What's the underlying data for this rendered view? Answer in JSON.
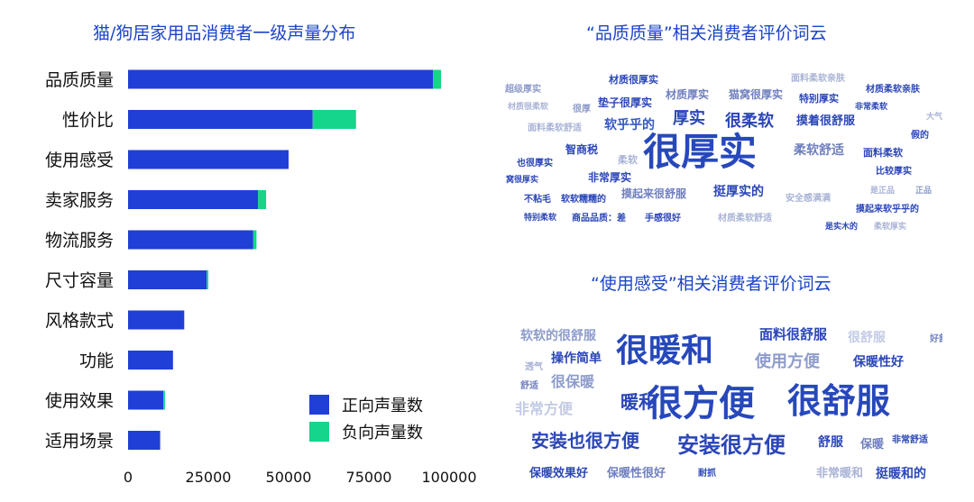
{
  "left_title": "猫/狗居家用品消费者一级声量分布",
  "legend": {
    "positive": {
      "label": "正向声量数",
      "color": "#1f3fd6"
    },
    "negative": {
      "label": "负向声量数",
      "color": "#14d58a"
    }
  },
  "chart_data": {
    "type": "bar",
    "orientation": "horizontal",
    "stacked": true,
    "categories": [
      "品质质量",
      "性价比",
      "使用感受",
      "卖家服务",
      "物流服务",
      "尺寸容量",
      "风格款式",
      "功能",
      "使用效果",
      "适用场景"
    ],
    "series": [
      {
        "name": "正向声量数",
        "color": "#1f3fd6",
        "values": [
          95000,
          57500,
          50000,
          40500,
          39000,
          24500,
          17500,
          14000,
          11000,
          10000
        ]
      },
      {
        "name": "负向声量数",
        "color": "#14d58a",
        "values": [
          2500,
          13500,
          0,
          2500,
          1000,
          500,
          0,
          0,
          500,
          0
        ]
      }
    ],
    "xlim": [
      0,
      100000
    ],
    "xticks": [
      "0",
      "25000",
      "50000",
      "75000",
      "100000"
    ],
    "grid": false,
    "legend_position": "bottom-right"
  },
  "cloud1": {
    "title": "“品质质量”相关消费者评价词云",
    "words": [
      {
        "t": "材质很厚实",
        "s": 11,
        "c": "#2b46b8"
      },
      {
        "t": "面料柔软亲肤",
        "s": 10,
        "c": "#a9b3d6"
      },
      {
        "t": "超级厚实",
        "s": 10,
        "c": "#8e9ccb"
      },
      {
        "t": "垫子很厚实",
        "s": 12,
        "c": "#2b46b8"
      },
      {
        "t": "材质厚实",
        "s": 12,
        "c": "#6f7fbf"
      },
      {
        "t": "猫窝很厚实",
        "s": 12,
        "c": "#6f7fbf"
      },
      {
        "t": "特别厚实",
        "s": 11,
        "c": "#2b46b8"
      },
      {
        "t": "材质柔软亲肤",
        "s": 10,
        "c": "#2b46b8"
      },
      {
        "t": "材质很柔软",
        "s": 9,
        "c": "#a9b3d6"
      },
      {
        "t": "很厚",
        "s": 10,
        "c": "#8e9ccb"
      },
      {
        "t": "非常柔软",
        "s": 9,
        "c": "#2b46b8"
      },
      {
        "t": "软乎乎的",
        "s": 14,
        "c": "#3558c6"
      },
      {
        "t": "厚实",
        "s": 18,
        "c": "#2b46b8"
      },
      {
        "t": "很柔软",
        "s": 18,
        "c": "#2b46b8"
      },
      {
        "t": "摸着很舒服",
        "s": 13,
        "c": "#2b46b8"
      },
      {
        "t": "面料柔软舒适",
        "s": 10,
        "c": "#a9b3d6"
      },
      {
        "t": "大气",
        "s": 9,
        "c": "#a9b3d6"
      },
      {
        "t": "假的",
        "s": 10,
        "c": "#2b46b8"
      },
      {
        "t": "智商税",
        "s": 12,
        "c": "#2b46b8"
      },
      {
        "t": "很厚实",
        "s": 42,
        "c": "#2748bc"
      },
      {
        "t": "柔软舒适",
        "s": 14,
        "c": "#6f7fbf"
      },
      {
        "t": "面料柔软",
        "s": 11,
        "c": "#2b46b8"
      },
      {
        "t": "也很厚实",
        "s": 10,
        "c": "#2b46b8"
      },
      {
        "t": "柔软",
        "s": 11,
        "c": "#a9b3d6"
      },
      {
        "t": "比较厚实",
        "s": 10,
        "c": "#2b46b8"
      },
      {
        "t": "非常厚实",
        "s": 12,
        "c": "#2b46b8"
      },
      {
        "t": "窝很厚实",
        "s": 9,
        "c": "#2b46b8"
      },
      {
        "t": "摸起来很舒服",
        "s": 12,
        "c": "#6f7fbf"
      },
      {
        "t": "挺厚实的",
        "s": 14,
        "c": "#2b46b8"
      },
      {
        "t": "安全感满满",
        "s": 10,
        "c": "#a9b3d6"
      },
      {
        "t": "是正品",
        "s": 9,
        "c": "#a9b3d6"
      },
      {
        "t": "正品",
        "s": 9,
        "c": "#8e9ccb"
      },
      {
        "t": "不粘毛",
        "s": 10,
        "c": "#2b46b8"
      },
      {
        "t": "软软糯糯的",
        "s": 10,
        "c": "#2b46b8"
      },
      {
        "t": "摸起来软乎乎的",
        "s": 10,
        "c": "#2b46b8"
      },
      {
        "t": "特别柔软",
        "s": 9,
        "c": "#2b46b8"
      },
      {
        "t": "商品品质：差",
        "s": 10,
        "c": "#2b46b8"
      },
      {
        "t": "手感很好",
        "s": 10,
        "c": "#2b46b8"
      },
      {
        "t": "材质柔软舒适",
        "s": 10,
        "c": "#a9b3d6"
      },
      {
        "t": "是实木的",
        "s": 9,
        "c": "#2b46b8"
      },
      {
        "t": "柔软厚实",
        "s": 9,
        "c": "#a9b3d6"
      }
    ]
  },
  "cloud2": {
    "title": "“使用感受”相关消费者评价词云",
    "words": [
      {
        "t": "软软的很舒服",
        "s": 14,
        "c": "#8e9ccb"
      },
      {
        "t": "面料很舒服",
        "s": 15,
        "c": "#2b46b8"
      },
      {
        "t": "很舒服",
        "s": 14,
        "c": "#c3cbe4"
      },
      {
        "t": "好舒服",
        "s": 10,
        "c": "#6f7fbf"
      },
      {
        "t": "很暖和",
        "s": 36,
        "c": "#2748bc"
      },
      {
        "t": "操作简单",
        "s": 14,
        "c": "#2b46b8"
      },
      {
        "t": "使用方便",
        "s": 18,
        "c": "#8e9ccb"
      },
      {
        "t": "保暖性好",
        "s": 14,
        "c": "#2b46b8"
      },
      {
        "t": "透气",
        "s": 10,
        "c": "#a9b3d6"
      },
      {
        "t": "很保暖",
        "s": 16,
        "c": "#8e9ccb"
      },
      {
        "t": "舒适",
        "s": 10,
        "c": "#6f7fbf"
      },
      {
        "t": "暖和",
        "s": 20,
        "c": "#2b46b8"
      },
      {
        "t": "很方便",
        "s": 40,
        "c": "#2748bc"
      },
      {
        "t": "很舒服",
        "s": 38,
        "c": "#2748bc"
      },
      {
        "t": "非常方便",
        "s": 16,
        "c": "#c3cbe4"
      },
      {
        "t": "安装也很方便",
        "s": 20,
        "c": "#2b46b8"
      },
      {
        "t": "安装很方便",
        "s": 24,
        "c": "#2b46b8"
      },
      {
        "t": "舒服",
        "s": 14,
        "c": "#2b46b8"
      },
      {
        "t": "保暖",
        "s": 13,
        "c": "#6f7fbf"
      },
      {
        "t": "非常舒适",
        "s": 10,
        "c": "#2b46b8"
      },
      {
        "t": "保暖效果好",
        "s": 13,
        "c": "#2b46b8"
      },
      {
        "t": "保暖性很好",
        "s": 13,
        "c": "#6f7fbf"
      },
      {
        "t": "耐抓",
        "s": 10,
        "c": "#2b46b8"
      },
      {
        "t": "非常暖和",
        "s": 13,
        "c": "#a9b3d6"
      },
      {
        "t": "挺暖和的",
        "s": 14,
        "c": "#2b46b8"
      }
    ]
  }
}
